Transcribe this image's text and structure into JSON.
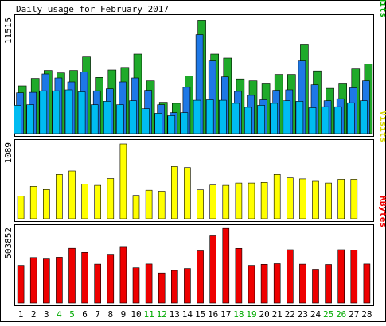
{
  "chart_data": {
    "type": "bar",
    "title": "Daily usage for February 2017",
    "categories": [
      "1",
      "2",
      "3",
      "4",
      "5",
      "6",
      "7",
      "8",
      "9",
      "10",
      "11",
      "12",
      "13",
      "14",
      "15",
      "16",
      "17",
      "18",
      "19",
      "20",
      "21",
      "22",
      "23",
      "24",
      "25",
      "26",
      "27",
      "28"
    ],
    "weekend_days": [
      "4",
      "5",
      "11",
      "12",
      "18",
      "19",
      "25",
      "26"
    ],
    "panels": [
      {
        "id": "hits",
        "ymax_label": "11515",
        "ymax": 11515,
        "legend": [
          {
            "text": "Pages",
            "color": "#00A0FF"
          },
          {
            "text": "/",
            "color": "#000000"
          },
          {
            "text": "Files",
            "color": "#0066E0"
          },
          {
            "text": "/",
            "color": "#000000"
          },
          {
            "text": "Hits",
            "color": "#00AA00"
          }
        ],
        "series": [
          {
            "name": "Hits",
            "color": "#1FAA2A",
            "values": [
              4800,
              5550,
              6350,
              6100,
              6350,
              7700,
              5650,
              6400,
              6650,
              8000,
              5300,
              3150,
              3050,
              5800,
              11400,
              8000,
              7600,
              5500,
              5300,
              5000,
              5950,
              5950,
              9000,
              6300,
              4550,
              5000,
              6500,
              7000
            ]
          },
          {
            "name": "Files",
            "color": "#1E78E6",
            "values": [
              4100,
              4150,
              6000,
              5600,
              5200,
              6200,
              4300,
              4500,
              5200,
              5600,
              4350,
              2900,
              2100,
              4650,
              9950,
              7300,
              5700,
              4250,
              3850,
              3400,
              4350,
              4400,
              7300,
              4900,
              3300,
              3500,
              4600,
              5300
            ]
          },
          {
            "name": "Pages",
            "color": "#00BCF2",
            "values": [
              2850,
              2900,
              4300,
              4300,
              4400,
              4200,
              2900,
              3250,
              2900,
              3300,
              2500,
              2050,
              1800,
              2100,
              3350,
              3400,
              3350,
              3050,
              2650,
              2850,
              3050,
              3300,
              3250,
              2600,
              2700,
              2700,
              3100,
              3300
            ]
          }
        ]
      },
      {
        "id": "visits",
        "ymax_label": "1089",
        "ymax": 1089,
        "legend": [
          {
            "text": "Visits",
            "color": "#D8D800"
          }
        ],
        "series": [
          {
            "name": "Visits",
            "color": "#FFFF00",
            "values": [
              330,
              470,
              425,
              645,
              695,
              505,
              485,
              585,
              1089,
              340,
              415,
              400,
              760,
              745,
              420,
              490,
              485,
              520,
              520,
              530,
              645,
              595,
              580,
              545,
              520,
              575,
              575,
              0
            ]
          }
        ]
      },
      {
        "id": "kbytes",
        "ymax_label": "503852",
        "ymax": 503852,
        "legend": [
          {
            "text": "KBytes",
            "color": "#EE0000"
          }
        ],
        "series": [
          {
            "name": "KBytes",
            "color": "#EE0000",
            "values": [
              257000,
              310000,
              300000,
              312000,
              373000,
              345000,
              265000,
              327000,
              380000,
              240000,
              266000,
              205000,
              222000,
              235000,
              355000,
              458000,
              508000,
              372000,
              257000,
              264000,
              268000,
              363000,
              265000,
              230000,
              263000,
              363000,
              360000,
              266000
            ]
          }
        ]
      }
    ]
  }
}
